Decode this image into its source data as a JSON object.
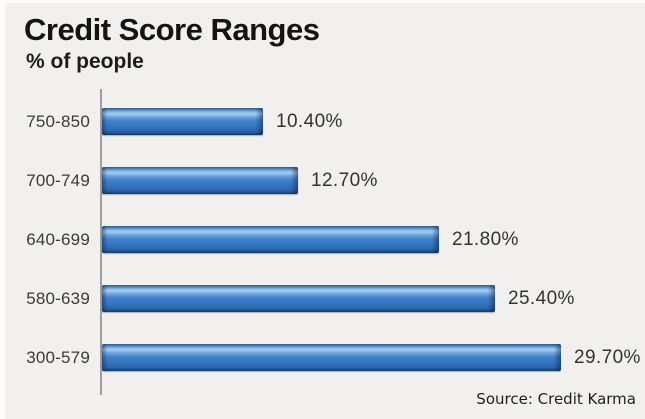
{
  "header": {
    "title": "Credit Score Ranges",
    "subtitle": "% of people"
  },
  "chart_data": {
    "type": "bar",
    "orientation": "horizontal",
    "title": "Credit Score Ranges",
    "subtitle": "% of people",
    "categories": [
      "750-850",
      "700-749",
      "640-699",
      "580-639",
      "300-579"
    ],
    "values": [
      10.4,
      12.7,
      21.8,
      25.4,
      29.7
    ],
    "value_labels": [
      "10.40%",
      "12.70%",
      "21.80%",
      "25.40%",
      "29.70%"
    ],
    "xlabel": "",
    "ylabel": "% of people",
    "xlim": [
      0,
      30
    ],
    "grid": false,
    "legend": false,
    "data_labels_position": "outside-end",
    "bar_color": "#3273bd",
    "bar_highlight_color": "#a5cdf2",
    "bar_shadow_color": "#163a62",
    "source": "Source: Credit Karma"
  },
  "colors": {
    "background": "#f1f0ee",
    "axis": "#9e9e9e",
    "title_text": "#141414",
    "label_text": "#3a3a3a",
    "source_text": "#1f1f1f"
  }
}
